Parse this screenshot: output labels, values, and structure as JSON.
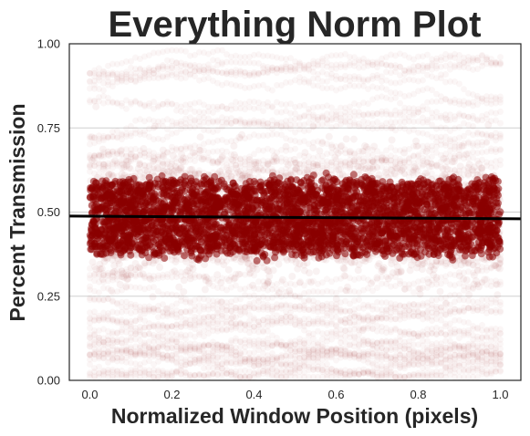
{
  "chart_data": {
    "type": "scatter",
    "title": "Everything Norm Plot",
    "xlabel": "Normalized Window Position (pixels)",
    "ylabel": "Percent Transmission",
    "xlim": [
      -0.05,
      1.05
    ],
    "ylim": [
      0.0,
      1.0
    ],
    "x_ticks": [
      0.0,
      0.2,
      0.4,
      0.6,
      0.8,
      1.0
    ],
    "x_tick_labels": [
      "0.0",
      "0.2",
      "0.4",
      "0.6",
      "0.8",
      "1.0"
    ],
    "y_ticks": [
      0.0,
      0.25,
      0.5,
      0.75,
      1.0
    ],
    "y_tick_labels": [
      "0.00",
      "0.25",
      "0.50",
      "0.75",
      "1.00"
    ],
    "grid": "horizontal",
    "point_color": "#8b0000",
    "line_color": "#000000",
    "trend_line": {
      "x": [
        -0.05,
        1.05
      ],
      "y": [
        0.488,
        0.48
      ]
    },
    "series": [
      {
        "x_range": [
          0.0,
          1.0
        ],
        "y_center": 0.485,
        "y_spread": 0.12,
        "density": "dense core"
      },
      {
        "x_range": [
          0.0,
          1.0
        ],
        "y_range": [
          0.0,
          1.0
        ],
        "density": "faint scattered traces"
      }
    ]
  }
}
